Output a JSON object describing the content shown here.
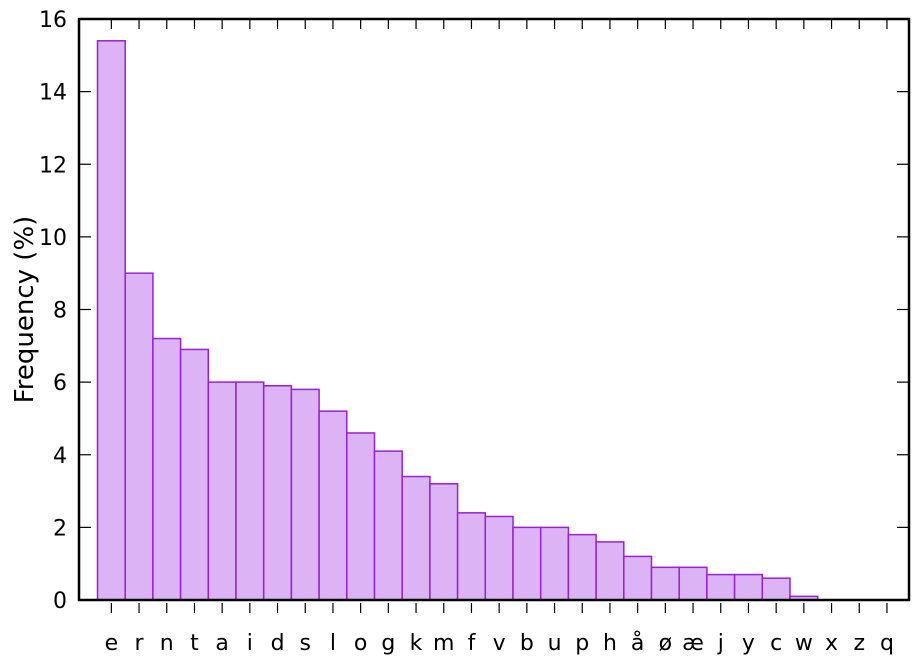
{
  "chart_data": {
    "type": "bar",
    "title": "",
    "xlabel": "",
    "ylabel": "Frequency (%)",
    "ylim": [
      0,
      16
    ],
    "yticks": [
      0,
      2,
      4,
      6,
      8,
      10,
      12,
      14,
      16
    ],
    "grid": false,
    "legend": "none",
    "bar_color": "#dcb4f5",
    "bar_edge_color": "#9b1fd4",
    "categories": [
      "e",
      "r",
      "n",
      "t",
      "a",
      "i",
      "d",
      "s",
      "l",
      "o",
      "g",
      "k",
      "m",
      "f",
      "v",
      "b",
      "u",
      "p",
      "h",
      "å",
      "ø",
      "æ",
      "j",
      "y",
      "c",
      "w",
      "x",
      "z",
      "q"
    ],
    "values": [
      15.4,
      9.0,
      7.2,
      6.9,
      6.0,
      6.0,
      5.9,
      5.8,
      5.2,
      4.6,
      4.1,
      3.4,
      3.2,
      2.4,
      2.3,
      2.0,
      2.0,
      1.8,
      1.6,
      1.2,
      0.9,
      0.9,
      0.7,
      0.7,
      0.6,
      0.1,
      0.0,
      0.0,
      0.0
    ]
  }
}
